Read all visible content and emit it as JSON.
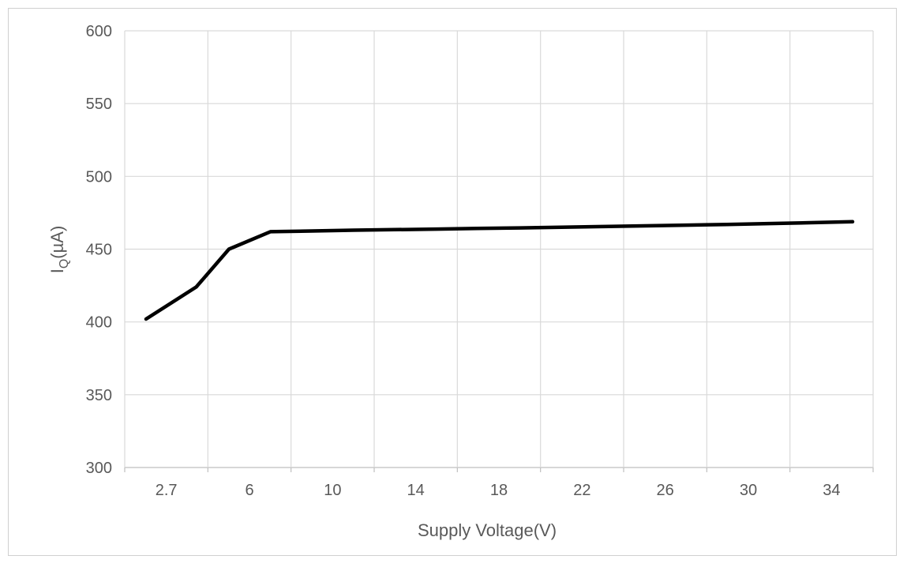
{
  "chart_data": {
    "type": "line",
    "xlabel": "Supply Voltage(V)",
    "ylabel": {
      "main": "I",
      "subscript": "Q",
      "unit": "(µA)"
    },
    "ylim": [
      300,
      600
    ],
    "yticks": [
      "300",
      "350",
      "400",
      "450",
      "500",
      "550",
      "600"
    ],
    "xticks": [
      "2.7",
      "6",
      "10",
      "14",
      "18",
      "22",
      "26",
      "30",
      "34"
    ],
    "grid": true,
    "series": [
      {
        "color": "#000000",
        "x": [
          2.7,
          4.7,
          6,
          8,
          10,
          12,
          14,
          16,
          18,
          20,
          22,
          24,
          26,
          28,
          30,
          32,
          34,
          36
        ],
        "values": [
          402,
          424,
          450,
          462,
          462.5,
          463,
          463.4,
          463.8,
          464.2,
          464.6,
          465,
          465.5,
          466,
          466.5,
          467,
          467.6,
          468.2,
          468.8
        ]
      }
    ]
  }
}
